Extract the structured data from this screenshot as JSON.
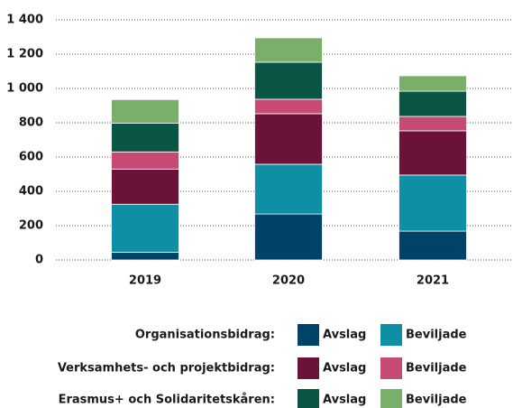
{
  "chart_data": {
    "type": "stacked_bar",
    "categories": [
      "2019",
      "2020",
      "2021"
    ],
    "ylim": [
      0,
      1400
    ],
    "yticks": [
      0,
      200,
      400,
      600,
      800,
      {
        "value": 1000,
        "label": "1 000"
      },
      {
        "value": 1200,
        "label": "1 200"
      },
      {
        "value": 1400,
        "label": "1 400"
      }
    ],
    "grid": true,
    "groups": [
      {
        "label": "Organisationsbidrag:",
        "series": [
          {
            "name": "Avslag",
            "color": "#004369",
            "values": [
              45,
              268,
              168
            ]
          },
          {
            "name": "Beviljade",
            "color": "#0e8fa3",
            "values": [
              280,
              290,
              327
            ]
          }
        ]
      },
      {
        "label": "Verksamhets- och projektbidrag:",
        "series": [
          {
            "name": "Avslag",
            "color": "#6b1238",
            "values": [
              205,
              295,
              258
            ]
          },
          {
            "name": "Beviljade",
            "color": "#c54b73",
            "values": [
              100,
              84,
              84
            ]
          }
        ]
      },
      {
        "label": "Erasmus+ och Solidaritetskåren:",
        "series": [
          {
            "name": "Avslag",
            "color": "#0a5543",
            "values": [
              168,
              216,
              147
            ]
          },
          {
            "name": "Beviljade",
            "color": "#7aae6b",
            "values": [
              137,
              142,
              90
            ]
          }
        ]
      }
    ]
  }
}
